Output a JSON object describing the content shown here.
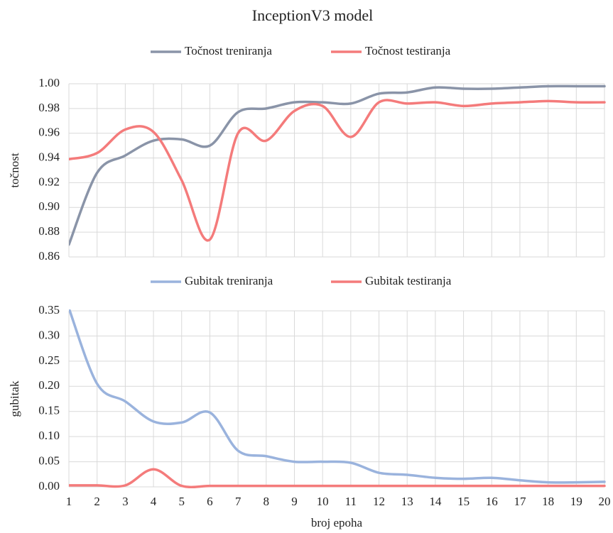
{
  "chart_data": [
    {
      "type": "line",
      "title": "InceptionV3 model",
      "ylabel": "točnost",
      "x": [
        1,
        2,
        3,
        4,
        5,
        6,
        7,
        8,
        9,
        10,
        11,
        12,
        13,
        14,
        15,
        16,
        17,
        18,
        19,
        20
      ],
      "xlim": [
        1,
        20
      ],
      "xticks": [
        1,
        2,
        3,
        4,
        5,
        6,
        7,
        8,
        9,
        10,
        11,
        12,
        13,
        14,
        15,
        16,
        17,
        18,
        19,
        20
      ],
      "show_xtick_labels": false,
      "ylim": [
        0.86,
        1
      ],
      "yticks": [
        {
          "value": 1,
          "label": "1.00"
        },
        0.98,
        0.96,
        0.94,
        0.92,
        {
          "value": 0.9,
          "label": "0.90"
        },
        0.88,
        0.86
      ],
      "grid": true,
      "legend": "top",
      "smooth": true,
      "series": [
        {
          "name": "Točnost treniranja",
          "color": "#8a94a8",
          "values": [
            0.87,
            0.928,
            0.942,
            0.954,
            0.955,
            0.95,
            0.977,
            0.98,
            0.985,
            0.985,
            0.984,
            0.992,
            0.993,
            0.997,
            0.996,
            0.996,
            0.997,
            0.998,
            0.998,
            0.998
          ]
        },
        {
          "name": "Točnost testiranja",
          "color": "#f47b7b",
          "values": [
            0.939,
            0.944,
            0.963,
            0.961,
            0.922,
            0.874,
            0.96,
            0.954,
            0.978,
            0.982,
            0.957,
            0.985,
            0.984,
            0.985,
            0.982,
            0.984,
            0.985,
            0.986,
            0.985,
            0.985
          ]
        }
      ]
    },
    {
      "type": "line",
      "xlabel": "broj epoha",
      "ylabel": "gubitak",
      "x": [
        1,
        2,
        3,
        4,
        5,
        6,
        7,
        8,
        9,
        10,
        11,
        12,
        13,
        14,
        15,
        16,
        17,
        18,
        19,
        20
      ],
      "xlim": [
        1,
        20
      ],
      "xticks": [
        1,
        2,
        3,
        4,
        5,
        6,
        7,
        8,
        9,
        10,
        11,
        12,
        13,
        14,
        15,
        16,
        17,
        18,
        19,
        20
      ],
      "show_xtick_labels": true,
      "ylim": [
        0,
        0.35
      ],
      "yticks": [
        0.35,
        {
          "value": 0.3,
          "label": "0.30"
        },
        0.25,
        {
          "value": 0.2,
          "label": "0.20"
        },
        0.15,
        {
          "value": 0.1,
          "label": "0.10"
        },
        0.05,
        {
          "value": 0,
          "label": "0.00"
        }
      ],
      "grid": true,
      "legend": "top",
      "smooth": true,
      "series": [
        {
          "name": "Gubitak treniranja",
          "color": "#9ab3dd",
          "values": [
            0.355,
            0.205,
            0.17,
            0.13,
            0.128,
            0.148,
            0.072,
            0.061,
            0.05,
            0.05,
            0.048,
            0.028,
            0.024,
            0.018,
            0.016,
            0.018,
            0.013,
            0.009,
            0.009,
            0.01
          ]
        },
        {
          "name": "Gubitak testiranja",
          "color": "#f47b7b",
          "values": [
            0.003,
            0.003,
            0.003,
            0.035,
            0.002,
            0.002,
            0.002,
            0.002,
            0.002,
            0.002,
            0.002,
            0.002,
            0.002,
            0.002,
            0.002,
            0.002,
            0.002,
            0.002,
            0.002,
            0.002
          ]
        }
      ]
    }
  ]
}
